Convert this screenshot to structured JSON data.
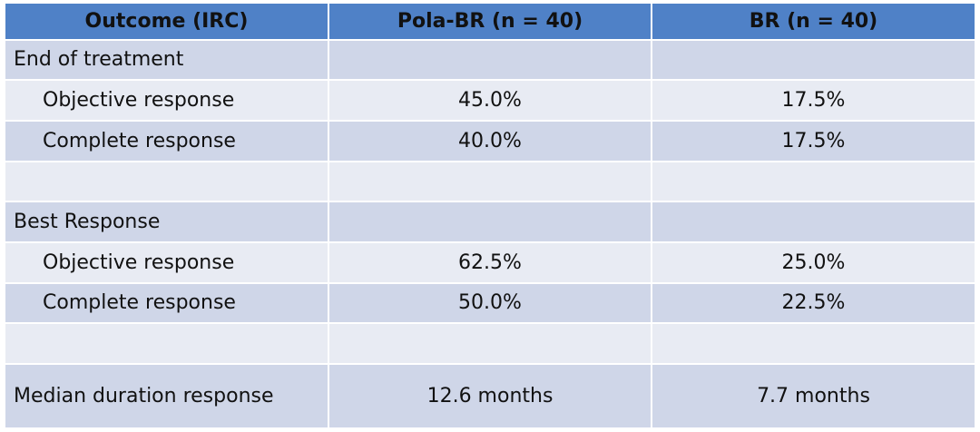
{
  "table": {
    "header": [
      "Outcome (IRC)",
      "Pola-BR (n = 40)",
      "BR (n = 40)"
    ],
    "rows": [
      [
        "End of treatment",
        null,
        null
      ],
      [
        "Objective response",
        "45.0%",
        "17.5%"
      ],
      [
        "Complete response",
        "40.0%",
        "17.5%"
      ],
      [
        null,
        null,
        null
      ],
      [
        "Best Response",
        null,
        null
      ],
      [
        "Objective response",
        "62.5%",
        "25.0%"
      ],
      [
        "Complete response",
        "50.0%",
        "22.5%"
      ],
      [
        null,
        null,
        null
      ],
      [
        "Median duration response",
        "12.6 months",
        "7.7 months"
      ]
    ]
  }
}
